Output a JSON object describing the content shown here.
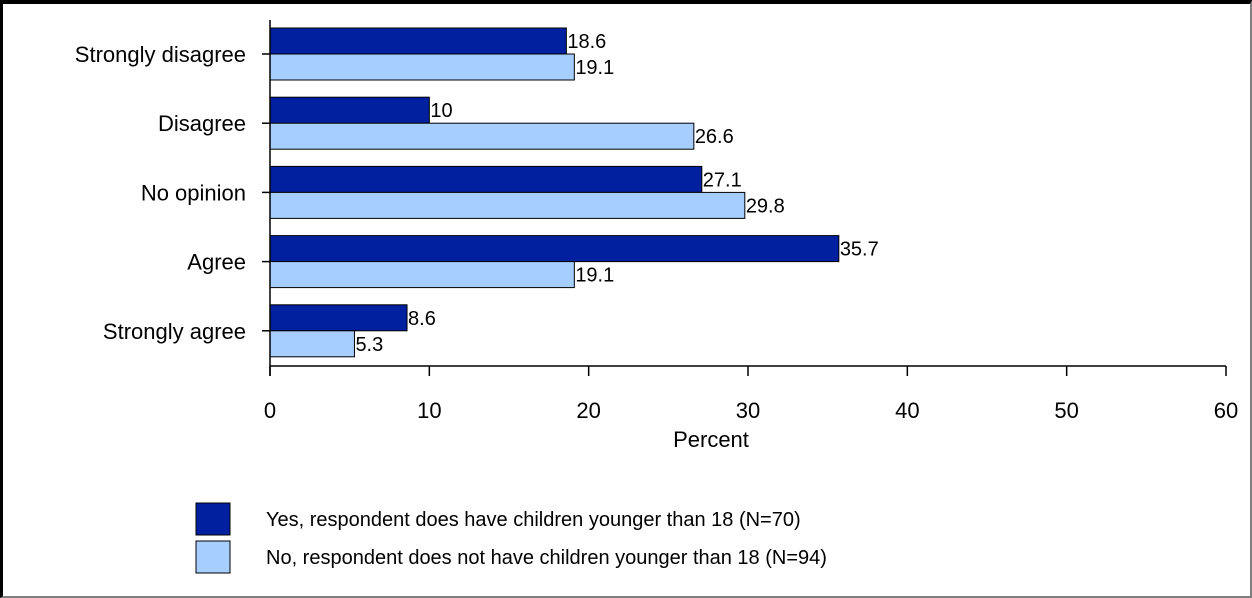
{
  "chart_data": {
    "type": "bar",
    "orientation": "horizontal",
    "categories": [
      "Strongly disagree",
      "Disagree",
      "No opinion",
      "Agree",
      "Strongly agree"
    ],
    "series": [
      {
        "name": "Yes, respondent does have children younger than 18 (N=70)",
        "values": [
          18.6,
          10,
          27.1,
          35.7,
          8.6
        ],
        "labels": [
          "18.6",
          "10",
          "27.1",
          "35.7",
          "8.6"
        ],
        "color": "#00209f"
      },
      {
        "name": "No, respondent does not have children younger than 18 (N=94)",
        "values": [
          19.1,
          26.6,
          29.8,
          19.1,
          5.3
        ],
        "labels": [
          "19.1",
          "26.6",
          "29.8",
          "19.1",
          "5.3"
        ],
        "color": "#a6cfff"
      }
    ],
    "xlabel": "Percent",
    "ylabel": "",
    "xlim": [
      0,
      60
    ],
    "xticks": [
      "0",
      "10",
      "20",
      "30",
      "40",
      "50",
      "60"
    ],
    "grid": false,
    "legend_position": "bottom"
  }
}
